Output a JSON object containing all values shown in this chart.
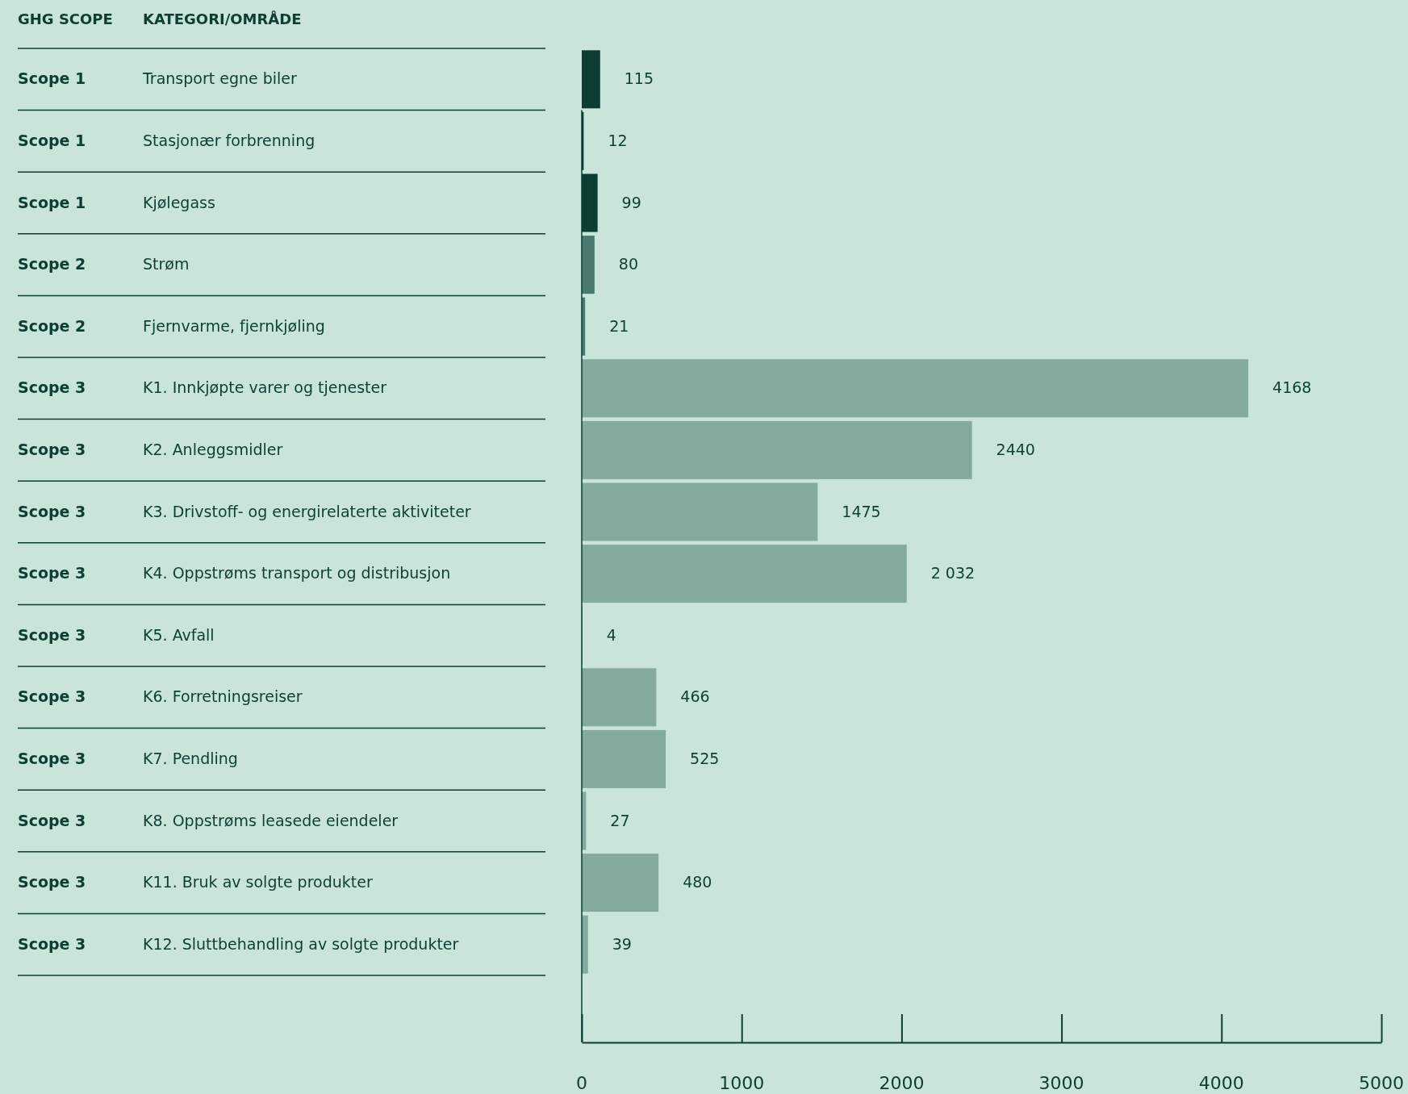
{
  "chart_data": {
    "type": "bar",
    "orientation": "horizontal",
    "ylabel": "KATEGORI/OMRÅDE",
    "categories": [
      "Transport egne biler",
      "Stasjonær forbrenning",
      "Kjølegass",
      "Strøm",
      "Fjernvarme, fjernkjøling",
      "K1. Innkjøpte varer og tjenester",
      "K2. Anleggsmidler",
      "K3. Drivstoff- og energirelaterte aktiviteter",
      "K4. Oppstrøms transport og distribusjon",
      "K5. Avfall",
      "K6. Forretningsreiser",
      "K7. Pendling",
      "K8. Oppstrøms leasede eiendeler",
      "K11. Bruk av solgte produkter",
      "K12. Sluttbehandling av solgte produkter"
    ],
    "values": [
      115,
      12,
      99,
      80,
      21,
      4168,
      2440,
      1475,
      2032,
      4,
      466,
      525,
      27,
      480,
      39
    ],
    "value_labels": [
      "115",
      "12",
      "99",
      "80",
      "21",
      "4168",
      "2440",
      "1475",
      "2 032",
      "4",
      "466",
      "525",
      "27",
      "480",
      "39"
    ],
    "colors": [
      "#0b3d33",
      "#0b3d33",
      "#0b3d33",
      "#4a7a6e",
      "#4a7a6e",
      "#84a99d",
      "#84a99d",
      "#84a99d",
      "#84a99d",
      "#84a99d",
      "#84a99d",
      "#84a99d",
      "#84a99d",
      "#84a99d",
      "#84a99d"
    ],
    "xlim": [
      0,
      5000
    ],
    "xticks": [
      0,
      1000,
      2000,
      3000,
      4000,
      5000
    ],
    "annotations": [
      "GHG SCOPE",
      "Scope 1",
      "Scope 1",
      "Scope 1",
      "Scope 2",
      "Scope 2",
      "Scope 3",
      "Scope 3",
      "Scope 3",
      "Scope 3",
      "Scope 3",
      "Scope 3",
      "Scope 3",
      "Scope 3",
      "Scope 3",
      "Scope 3"
    ],
    "grid": false
  }
}
